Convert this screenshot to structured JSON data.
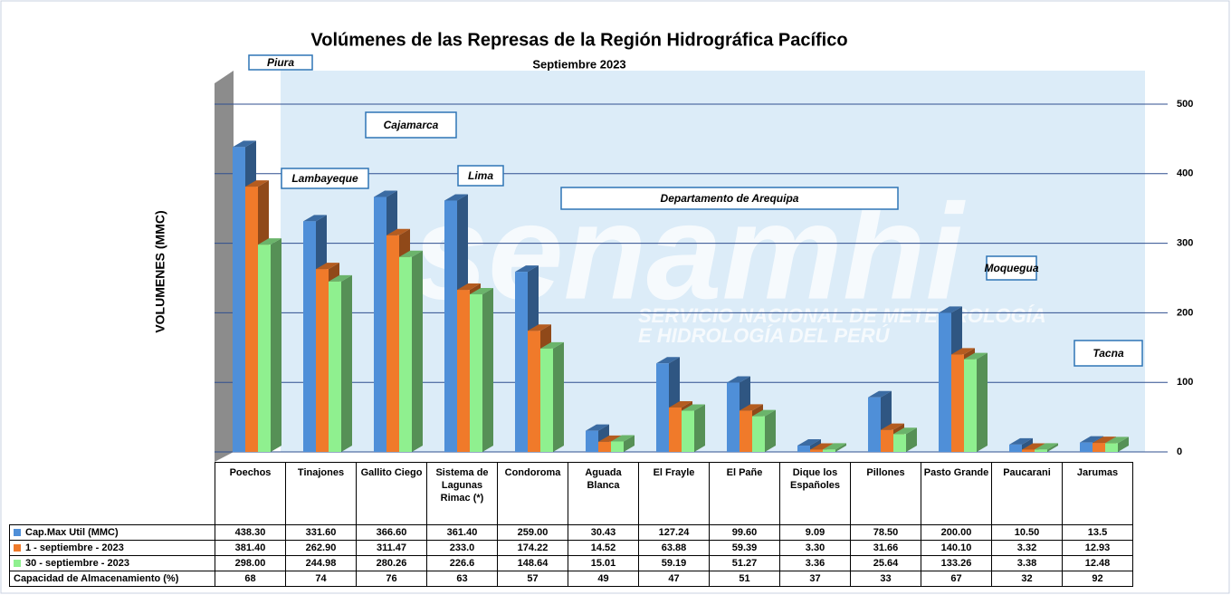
{
  "chart_data": {
    "type": "bar3d",
    "title": "Volúmenes de las Represas de la Región Hidrográfica Pacífico",
    "subtitle": "Septiembre 2023",
    "y_label": "VOLUMENES (MMC)",
    "categories": [
      "Poechos",
      "Tinajones",
      "Gallito Ciego",
      "Sistema de Lagunas Rimac (*)",
      "Condoroma",
      "Aguada Blanca",
      "El Frayle",
      "El Pañe",
      "Dique los Españoles",
      "Pillones",
      "Pasto Grande",
      "Paucarani",
      "Jarumas"
    ],
    "series": [
      {
        "name": "Cap.Max Util (MMC)",
        "color": "#4f8fd8",
        "values": [
          438.3,
          331.6,
          366.6,
          361.4,
          259.0,
          30.43,
          127.24,
          99.6,
          9.09,
          78.5,
          200.0,
          10.5,
          13.5
        ],
        "value_labels": [
          "438.30",
          "331.60",
          "366.60",
          "361.40",
          "259.00",
          "30.43",
          "127.24",
          "99.60",
          "9.09",
          "78.50",
          "200.00",
          "10.50",
          "13.5"
        ]
      },
      {
        "name": "1 - septiembre - 2023",
        "color": "#f07a2a",
        "values": [
          381.4,
          262.9,
          311.47,
          233.0,
          174.22,
          14.52,
          63.88,
          59.39,
          3.3,
          31.66,
          140.1,
          3.32,
          12.93
        ],
        "value_labels": [
          "381.40",
          "262.90",
          "311.47",
          "233.0",
          "174.22",
          "14.52",
          "63.88",
          "59.39",
          "3.30",
          "31.66",
          "140.10",
          "3.32",
          "12.93"
        ]
      },
      {
        "name": "30 - septiembre - 2023",
        "color": "#8ff08f",
        "values": [
          298.0,
          244.98,
          280.26,
          226.6,
          148.64,
          15.01,
          59.19,
          51.27,
          3.36,
          25.64,
          133.26,
          3.38,
          12.48
        ],
        "value_labels": [
          "298.00",
          "244.98",
          "280.26",
          "226.6",
          "148.64",
          "15.01",
          "59.19",
          "51.27",
          "3.36",
          "25.64",
          "133.26",
          "3.38",
          "12.48"
        ]
      }
    ],
    "storage_capacity": {
      "name": "Capacidad de Almacenamiento  (%)",
      "values": [
        68,
        74,
        76,
        63,
        57,
        49,
        47,
        51,
        37,
        33,
        67,
        32,
        92
      ]
    },
    "ylim": [
      0,
      550
    ],
    "yticks": [
      0,
      100,
      200,
      300,
      400,
      500
    ],
    "grid": true,
    "annotations": [
      "Piura",
      "Lambayeque",
      "Cajamarca",
      "Lima",
      "Departamento de Arequipa",
      "Moquegua",
      "Tacna"
    ],
    "watermark": {
      "name": "senamhi",
      "lines": [
        "SERVICIO NACIONAL DE METEOROLOGÍA",
        "E HIDROLOGÍA DEL PERÚ"
      ]
    }
  }
}
